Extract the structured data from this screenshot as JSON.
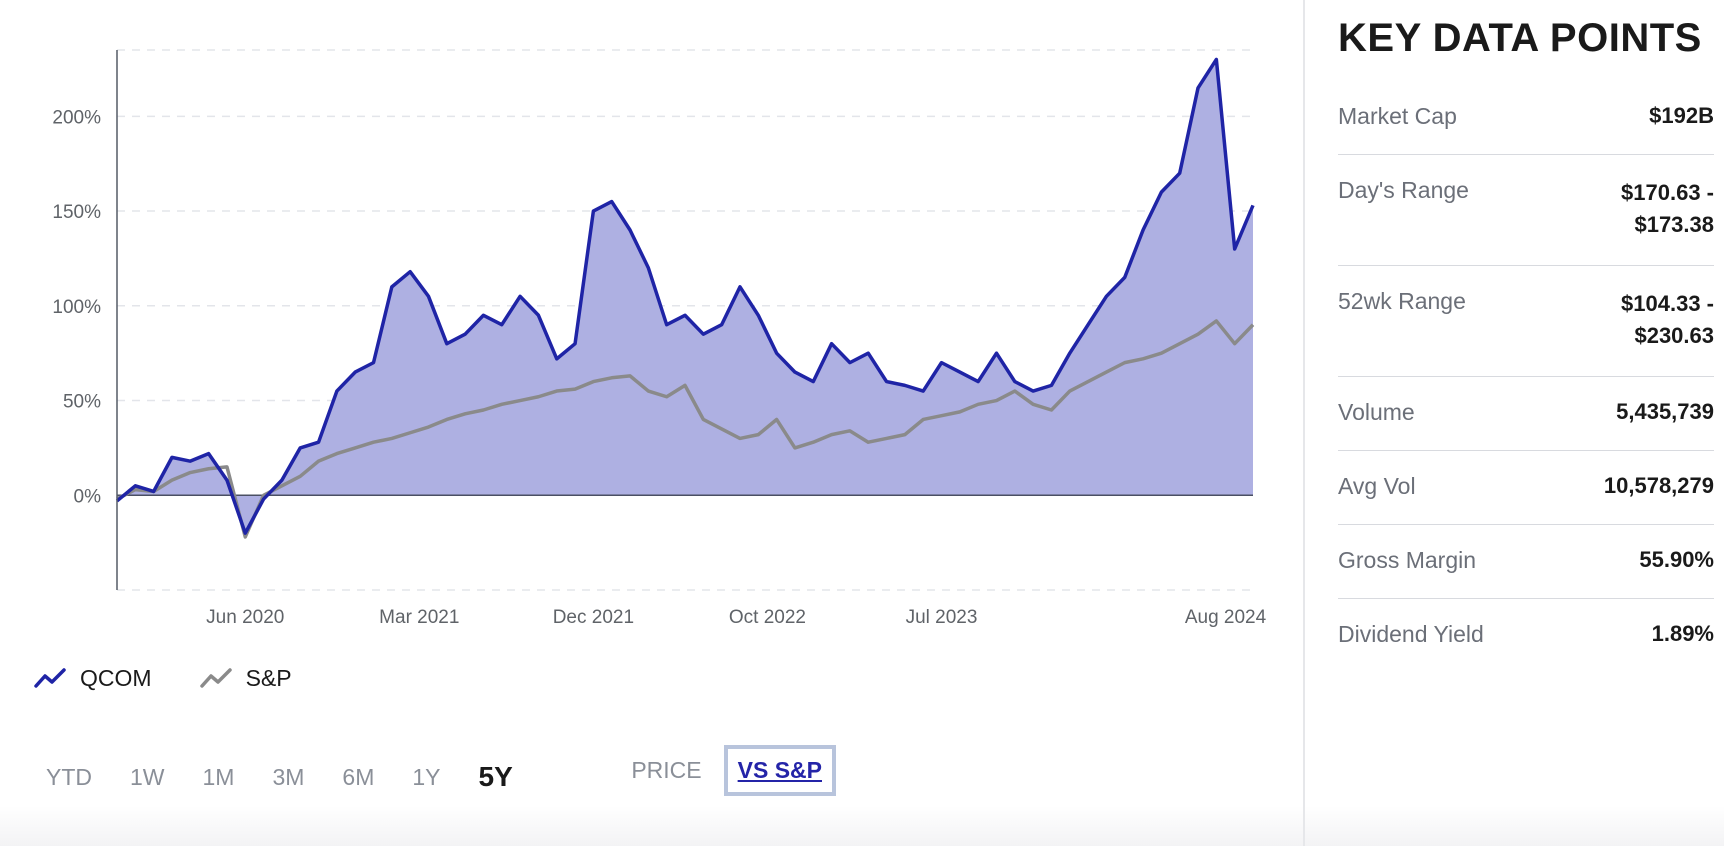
{
  "chart_data": {
    "type": "area",
    "title": "",
    "xlabel": "",
    "ylabel": "",
    "x_tick_labels": [
      "Jun 2020",
      "Mar 2021",
      "Dec 2021",
      "Oct 2022",
      "Jul 2023",
      "Aug 2024"
    ],
    "y_tick_labels": [
      "200%",
      "150%",
      "100%",
      "50%",
      "0%"
    ],
    "y_ticks": [
      200,
      150,
      100,
      50,
      0
    ],
    "ylim": [
      -50,
      235
    ],
    "xlim": [
      0,
      62
    ],
    "x_tick_positions": [
      7,
      16.5,
      26,
      35.5,
      45,
      60.5
    ],
    "series": [
      {
        "name": "QCOM",
        "color": "#1f24a6",
        "fill": "#aeb0e2",
        "x": [
          0,
          1,
          2,
          3,
          4,
          5,
          6,
          7,
          8,
          9,
          10,
          11,
          12,
          13,
          14,
          15,
          16,
          17,
          18,
          19,
          20,
          21,
          22,
          23,
          24,
          25,
          26,
          27,
          28,
          29,
          30,
          31,
          32,
          33,
          34,
          35,
          36,
          37,
          38,
          39,
          40,
          41,
          42,
          43,
          44,
          45,
          46,
          47,
          48,
          49,
          50,
          51,
          52,
          53,
          54,
          55,
          56,
          57,
          58,
          59,
          60,
          61,
          62
        ],
        "values": [
          -3,
          5,
          2,
          20,
          18,
          22,
          8,
          -20,
          -2,
          8,
          25,
          28,
          55,
          65,
          70,
          110,
          118,
          105,
          80,
          85,
          95,
          90,
          105,
          95,
          72,
          80,
          150,
          155,
          140,
          120,
          90,
          95,
          85,
          90,
          110,
          95,
          75,
          65,
          60,
          80,
          70,
          75,
          60,
          58,
          55,
          70,
          65,
          60,
          75,
          60,
          55,
          58,
          75,
          90,
          105,
          115,
          140,
          160,
          170,
          215,
          230,
          130,
          153
        ]
      },
      {
        "name": "S&P",
        "color": "#8a8a8a",
        "x": [
          0,
          1,
          2,
          3,
          4,
          5,
          6,
          7,
          8,
          9,
          10,
          11,
          12,
          13,
          14,
          15,
          16,
          17,
          18,
          19,
          20,
          21,
          22,
          23,
          24,
          25,
          26,
          27,
          28,
          29,
          30,
          31,
          32,
          33,
          34,
          35,
          36,
          37,
          38,
          39,
          40,
          41,
          42,
          43,
          44,
          45,
          46,
          47,
          48,
          49,
          50,
          51,
          52,
          53,
          54,
          55,
          56,
          57,
          58,
          59,
          60,
          61,
          62
        ],
        "values": [
          -2,
          3,
          2,
          8,
          12,
          14,
          15,
          -22,
          0,
          5,
          10,
          18,
          22,
          25,
          28,
          30,
          33,
          36,
          40,
          43,
          45,
          48,
          50,
          52,
          55,
          56,
          60,
          62,
          63,
          55,
          52,
          58,
          40,
          35,
          30,
          32,
          40,
          25,
          28,
          32,
          34,
          28,
          30,
          32,
          40,
          42,
          44,
          48,
          50,
          55,
          48,
          45,
          55,
          60,
          65,
          70,
          72,
          75,
          80,
          85,
          92,
          80,
          90
        ]
      }
    ],
    "legend": "bottom-left",
    "grid": true
  },
  "legend": {
    "items": [
      {
        "label": "QCOM",
        "color": "#1f24a6"
      },
      {
        "label": "S&P",
        "color": "#8a8a8a"
      }
    ]
  },
  "range_buttons": [
    "YTD",
    "1W",
    "1M",
    "3M",
    "6M",
    "1Y",
    "5Y"
  ],
  "range_active": "5Y",
  "mode_buttons": {
    "price": "PRICE",
    "vs_sp": "VS S&P"
  },
  "key_data": {
    "title": "KEY DATA POINTS",
    "rows": [
      {
        "label": "Market Cap",
        "value_line1": "$192B",
        "value_line2": ""
      },
      {
        "label": "Day's Range",
        "value_line1": "$170.63 -",
        "value_line2": "$173.38"
      },
      {
        "label": "52wk Range",
        "value_line1": "$104.33 -",
        "value_line2": "$230.63"
      },
      {
        "label": "Volume",
        "value_line1": "5,435,739",
        "value_line2": ""
      },
      {
        "label": "Avg Vol",
        "value_line1": "10,578,279",
        "value_line2": ""
      },
      {
        "label": "Gross Margin",
        "value_line1": "55.90%",
        "value_line2": ""
      },
      {
        "label": "Dividend Yield",
        "value_line1": "1.89%",
        "value_line2": ""
      }
    ]
  }
}
